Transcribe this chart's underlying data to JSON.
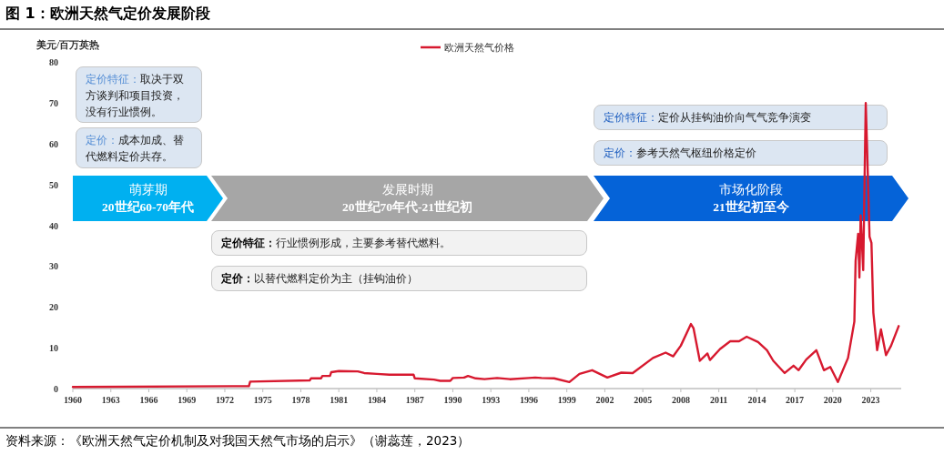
{
  "chart_data": {
    "type": "line",
    "title": "图 1：欧洲天然气定价发展阶段",
    "ylabel": "美元/百万英热",
    "xlim": [
      1960,
      2025.4
    ],
    "xticks": [
      1960,
      1963,
      1966,
      1969,
      1972,
      1975,
      1978,
      1981,
      1984,
      1987,
      1990,
      1993,
      1996,
      1999,
      2002,
      2005,
      2008,
      2011,
      2014,
      2017,
      2020,
      2023
    ],
    "ylim": [
      0,
      80
    ],
    "yticks": [
      0,
      10,
      20,
      30,
      40,
      50,
      60,
      70,
      80
    ],
    "grid": false,
    "legend": "top",
    "marker": "none",
    "line_style": "solid",
    "series": [
      {
        "name": "欧洲天然气价格",
        "color": "#d7192f",
        "x": [
          1960,
          1973.9,
          1974,
          1978.7,
          1978.8,
          1979.6,
          1979.7,
          1980.3,
          1980.4,
          1981,
          1982.5,
          1983,
          1984,
          1985,
          1986.9,
          1987,
          1988.5,
          1989,
          1989.8,
          1990,
          1990.9,
          1991.2,
          1991.8,
          1992.5,
          1993.5,
          1994.5,
          1996,
          1996.5,
          1997,
          1998,
          1999.2,
          2000,
          2001,
          2002.2,
          2003.3,
          2004.2,
          2005.8,
          2006.8,
          2007.4,
          2008,
          2008.8,
          2009,
          2009.5,
          2010.1,
          2010.3,
          2011.1,
          2011.9,
          2012.6,
          2013.2,
          2014.1,
          2014.8,
          2015.3,
          2016.2,
          2016.9,
          2017.3,
          2017.9,
          2018.7,
          2019.3,
          2019.8,
          2020.4,
          2021.2,
          2021.7,
          2021.8,
          2022,
          2022.1,
          2022.2,
          2022.4,
          2022.6,
          2022.7,
          2022.9,
          2023.05,
          2023.2,
          2023.5,
          2023.8,
          2024.2,
          2024.6,
          2025.2
        ],
        "values": [
          0.4,
          0.6,
          1.7,
          2.0,
          2.5,
          2.5,
          3.1,
          3.1,
          4.0,
          4.3,
          4.2,
          3.8,
          3.6,
          3.4,
          3.4,
          2.5,
          2.2,
          1.9,
          1.9,
          2.6,
          2.7,
          3.1,
          2.5,
          2.3,
          2.6,
          2.3,
          2.6,
          2.7,
          2.6,
          2.5,
          1.6,
          3.6,
          4.5,
          2.7,
          3.9,
          3.8,
          7.5,
          8.8,
          7.9,
          10.5,
          15.8,
          14.8,
          6.8,
          8.6,
          7.0,
          9.7,
          11.6,
          11.6,
          12.7,
          11.4,
          9.4,
          6.8,
          3.8,
          5.6,
          4.5,
          7.1,
          9.4,
          4.5,
          5.3,
          1.6,
          7.5,
          16.4,
          31.3,
          37.9,
          27.2,
          42.4,
          29.0,
          69.9,
          59.5,
          37.2,
          35.7,
          18.6,
          9.4,
          14.5,
          8.2,
          10.5,
          15.3
        ]
      }
    ],
    "annotations": [
      "定价特征：取决于双方谈判和项目投资，没有行业惯例。",
      "定价：成本加成、替代燃料定价共存。",
      "萌芽期\n20世纪60-70年代",
      "发展时期\n20世纪70年代-21世纪初",
      "市场化阶段\n21世纪初至今",
      "定价特征：行业惯例形成，主要参考替代燃料。",
      "定价：以替代燃料定价为主（挂钩油价）",
      "定价特征：定价从挂钩油价向气气竞争演变",
      "定价：参考天然气枢纽价格定价",
      "资料来源：《欧洲天然气定价机制及对我国天然气市场的启示》（谢蕊莲，2023）"
    ]
  }
}
